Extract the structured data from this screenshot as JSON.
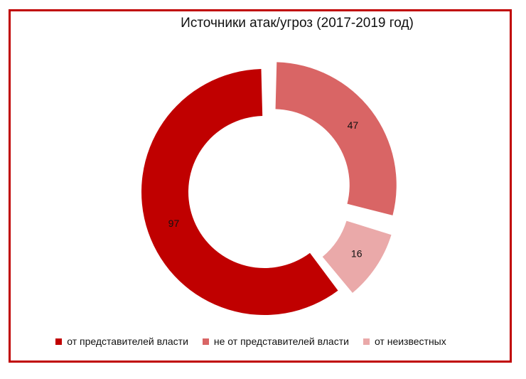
{
  "chart_data": {
    "type": "donut",
    "title": "Источники атак/угроз (2017-2019 год)",
    "categories": [
      "от представителей власти",
      "не от представителей власти",
      "от неизвестных"
    ],
    "values": [
      97,
      47,
      16
    ],
    "colors": [
      "#c00000",
      "#d96565",
      "#eaa9a9"
    ],
    "legend_position": "bottom"
  }
}
